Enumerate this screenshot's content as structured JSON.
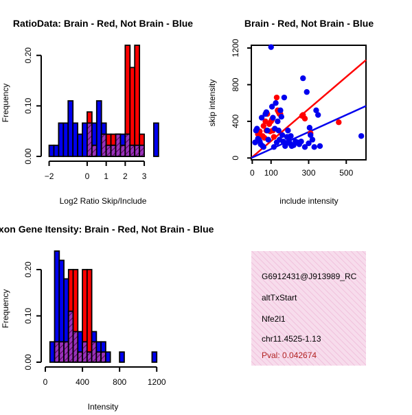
{
  "colors": {
    "red": "#ff0000",
    "blue": "#0000ee",
    "purple": "#9933bb",
    "hatch": "#550055",
    "pval": "#b22222",
    "info_bg": "#f7dcec",
    "info_stripe": "#eeb7d6"
  },
  "chart_data": [
    {
      "id": "ratio",
      "type": "bar",
      "title": "RatioData: Brain - Red, Not Brain - Blue",
      "xlabel": "Log2 Ratio Skip/Include",
      "ylabel": "Frequency",
      "xlim": [
        -2.2,
        3.9
      ],
      "ylim": [
        0,
        0.22
      ],
      "xticks": [
        -2,
        0,
        1,
        2,
        3
      ],
      "xtick_labels": [
        "−2",
        "0",
        "1",
        "2",
        "3"
      ],
      "yticks": [
        0.0,
        0.1,
        0.2
      ],
      "ytick_labels": [
        "0.00",
        "0.10",
        "0.20"
      ],
      "bin_start": -2.0,
      "bin_width": 0.25,
      "series": [
        {
          "name": "Brain",
          "color": "red",
          "values": [
            0,
            0,
            0,
            0,
            0,
            0,
            0,
            0,
            0.088,
            0.022,
            0,
            0.044,
            0.044,
            0.044,
            0.044,
            0.022,
            0.22,
            0.176,
            0.22,
            0.044,
            0,
            0,
            0
          ]
        },
        {
          "name": "Not Brain",
          "color": "blue",
          "values": [
            0.022,
            0.022,
            0.066,
            0.066,
            0.11,
            0.066,
            0.044,
            0.066,
            0.066,
            0.066,
            0.11,
            0.066,
            0.022,
            0.022,
            0.044,
            0.044,
            0.044,
            0.022,
            0.022,
            0.022,
            0,
            0,
            0.066
          ]
        }
      ]
    },
    {
      "id": "intensity",
      "type": "bar",
      "title": "Exon Gene Itensity: Brain - Red, Not Brain - Blue",
      "xlabel": "Intensity",
      "ylabel": "Frequency",
      "xlim": [
        0,
        1250
      ],
      "ylim": [
        0,
        0.24
      ],
      "xticks": [
        0,
        400,
        800,
        1200
      ],
      "xtick_labels": [
        "0",
        "400",
        "800",
        "1200"
      ],
      "yticks": [
        0.0,
        0.1,
        0.2
      ],
      "ytick_labels": [
        "0.00",
        "0.10",
        "0.20"
      ],
      "bin_start": 50,
      "bin_width": 50,
      "series": [
        {
          "name": "Brain",
          "color": "red",
          "values": [
            0,
            0.044,
            0.044,
            0.044,
            0.2,
            0.2,
            0.022,
            0.2,
            0.2,
            0.044,
            0.022,
            0.022,
            0,
            0,
            0,
            0,
            0,
            0,
            0,
            0,
            0,
            0,
            0
          ]
        },
        {
          "name": "Not Brain",
          "color": "blue",
          "values": [
            0.044,
            0.24,
            0.22,
            0.18,
            0.11,
            0.066,
            0.066,
            0.044,
            0.022,
            0.066,
            0.044,
            0.044,
            0.022,
            0,
            0,
            0.022,
            0,
            0,
            0,
            0,
            0,
            0,
            0.022
          ]
        }
      ]
    },
    {
      "id": "scatter",
      "type": "scatter",
      "title": "Brain - Red, Not Brain - Blue",
      "xlabel": "include intensity",
      "ylabel": "skip intensity",
      "xlim": [
        -5,
        605
      ],
      "ylim": [
        -20,
        1230
      ],
      "xticks": [
        0,
        100,
        300,
        500
      ],
      "xtick_labels": [
        "0",
        "100",
        "300",
        "500"
      ],
      "yticks": [
        0,
        400,
        800,
        1200
      ],
      "ytick_labels": [
        "0",
        "400",
        "800",
        "1200"
      ],
      "series": [
        {
          "name": "Brain",
          "color": "red",
          "fit": {
            "intercept": 10,
            "slope": 1.75
          },
          "points": [
            [
              30,
              260
            ],
            [
              40,
              290
            ],
            [
              55,
              240
            ],
            [
              60,
              350
            ],
            [
              65,
              220
            ],
            [
              70,
              400
            ],
            [
              75,
              300
            ],
            [
              80,
              480
            ],
            [
              90,
              370
            ],
            [
              95,
              290
            ],
            [
              100,
              400
            ],
            [
              105,
              420
            ],
            [
              110,
              300
            ],
            [
              115,
              230
            ],
            [
              130,
              660
            ],
            [
              135,
              520
            ],
            [
              140,
              500
            ],
            [
              145,
              480
            ],
            [
              150,
              480
            ],
            [
              270,
              470
            ],
            [
              265,
              460
            ],
            [
              280,
              430
            ],
            [
              310,
              270
            ],
            [
              460,
              390
            ]
          ]
        },
        {
          "name": "Not Brain",
          "color": "blue",
          "fit": {
            "intercept": 5,
            "slope": 0.93
          },
          "points": [
            [
              15,
              170
            ],
            [
              20,
              300
            ],
            [
              25,
              320
            ],
            [
              30,
              210
            ],
            [
              35,
              200
            ],
            [
              40,
              180
            ],
            [
              45,
              150
            ],
            [
              50,
              440
            ],
            [
              55,
              130
            ],
            [
              60,
              120
            ],
            [
              70,
              480
            ],
            [
              75,
              500
            ],
            [
              80,
              300
            ],
            [
              85,
              200
            ],
            [
              100,
              1210
            ],
            [
              105,
              560
            ],
            [
              110,
              440
            ],
            [
              115,
              120
            ],
            [
              120,
              320
            ],
            [
              125,
              600
            ],
            [
              130,
              170
            ],
            [
              135,
              400
            ],
            [
              140,
              300
            ],
            [
              145,
              200
            ],
            [
              150,
              520
            ],
            [
              155,
              450
            ],
            [
              160,
              250
            ],
            [
              165,
              180
            ],
            [
              170,
              660
            ],
            [
              175,
              130
            ],
            [
              180,
              160
            ],
            [
              185,
              230
            ],
            [
              190,
              300
            ],
            [
              195,
              190
            ],
            [
              200,
              160
            ],
            [
              205,
              240
            ],
            [
              210,
              130
            ],
            [
              220,
              140
            ],
            [
              230,
              180
            ],
            [
              240,
              170
            ],
            [
              250,
              150
            ],
            [
              260,
              180
            ],
            [
              270,
              870
            ],
            [
              280,
              120
            ],
            [
              290,
              720
            ],
            [
              300,
              160
            ],
            [
              305,
              330
            ],
            [
              310,
              250
            ],
            [
              320,
              200
            ],
            [
              330,
              120
            ],
            [
              340,
              520
            ],
            [
              350,
              470
            ],
            [
              360,
              130
            ],
            [
              580,
              240
            ]
          ]
        }
      ]
    }
  ],
  "info_panel": {
    "probe_id": "G6912431@J913989_RC",
    "event_type": "altTxStart",
    "gene": "Nfe2l1",
    "location": "chr11.4525-1.13",
    "pval": "Pval: 0.042674"
  }
}
